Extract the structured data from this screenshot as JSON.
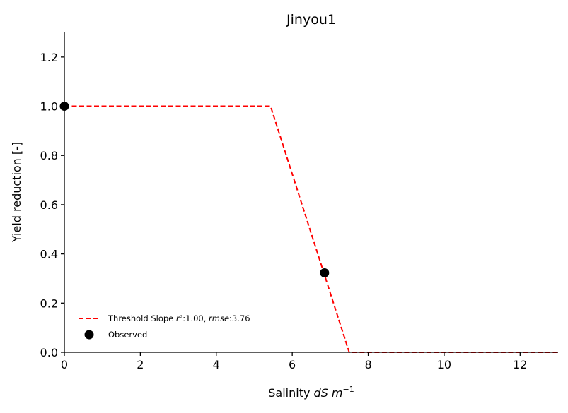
{
  "chart_data": {
    "type": "line",
    "title": "Jinyou1",
    "xlabel_prefix": "Salinity ",
    "xlabel_unit": "dS m",
    "xlabel_exp": "−1",
    "ylabel": "Yield reduction [-]",
    "xlim": [
      0,
      13
    ],
    "ylim": [
      0,
      1.3
    ],
    "xticks": [
      0,
      2,
      4,
      6,
      8,
      10,
      12
    ],
    "yticks": [
      0.0,
      0.2,
      0.4,
      0.6,
      0.8,
      1.0,
      1.2
    ],
    "xtick_labels": [
      "0",
      "2",
      "4",
      "6",
      "8",
      "10",
      "12"
    ],
    "ytick_labels": [
      "0.0",
      "0.2",
      "0.4",
      "0.6",
      "0.8",
      "1.0",
      "1.2"
    ],
    "grid": false,
    "legend_position": "lower-left",
    "series": [
      {
        "name": "Threshold Slope",
        "legend_stats": {
          "r2_label": "r²",
          "r2_value": ":1.00, ",
          "rmse_label": "rmse",
          "rmse_value": ":3.76"
        },
        "kind": "line",
        "style": "dashed",
        "color": "#ff0000",
        "x": [
          0,
          5.43,
          7.5,
          13
        ],
        "y": [
          1.0,
          1.0,
          0.0,
          0.0
        ]
      },
      {
        "name": "Observed",
        "kind": "scatter",
        "color": "#000000",
        "x": [
          0,
          6.85
        ],
        "y": [
          1.0,
          0.323
        ]
      }
    ]
  }
}
